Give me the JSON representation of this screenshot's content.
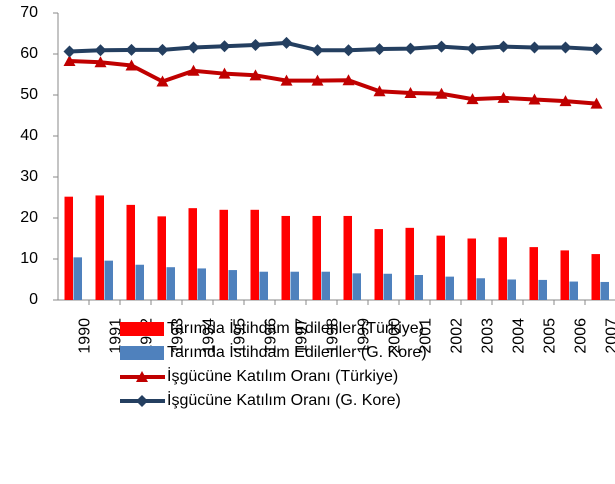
{
  "chart_data": {
    "type": "bar",
    "categories": [
      "1990",
      "1991",
      "1992",
      "1993",
      "1994",
      "1995",
      "1996",
      "1997",
      "1998",
      "1999",
      "2000",
      "2001",
      "2002",
      "2003",
      "2004",
      "2005",
      "2006",
      "2007"
    ],
    "series": [
      {
        "name": "Tarımda İstihdam Edilenler (Türkiye)",
        "type": "bar",
        "color": "#ff0000",
        "values": [
          25.2,
          25.5,
          23.2,
          20.4,
          22.4,
          22,
          22,
          20.5,
          20.5,
          20.5,
          17.3,
          17.6,
          15.7,
          15,
          15.3,
          12.9,
          12.1,
          11.2
        ]
      },
      {
        "name": "Tarımda İstihdam Edilenler (G. Kore)",
        "type": "bar",
        "color": "#4f81bd",
        "values": [
          10.4,
          9.6,
          8.6,
          8.0,
          7.7,
          7.3,
          6.9,
          6.9,
          6.9,
          6.5,
          6.4,
          6.1,
          5.7,
          5.3,
          5.0,
          4.9,
          4.5,
          4.4
        ]
      },
      {
        "name": "İşgücüne Katılım Oranı (Türkiye)",
        "type": "line",
        "marker": "triangle",
        "color": "#c00000",
        "values": [
          58.3,
          58.0,
          57.2,
          53.3,
          55.9,
          55.2,
          54.8,
          53.5,
          53.5,
          53.6,
          50.9,
          50.5,
          50.3,
          49.0,
          49.3,
          48.9,
          48.5,
          47.9
        ]
      },
      {
        "name": "İşgücüne Katılım Oranı (G. Kore)",
        "type": "line",
        "marker": "diamond",
        "color": "#243f60",
        "values": [
          60.6,
          60.9,
          61.0,
          61.0,
          61.6,
          61.9,
          62.2,
          62.7,
          60.9,
          60.9,
          61.2,
          61.3,
          61.8,
          61.3,
          61.8,
          61.6,
          61.6,
          61.2
        ]
      }
    ],
    "ylim": [
      0,
      70
    ],
    "yticks": [
      0,
      10,
      20,
      30,
      40,
      50,
      60,
      70
    ],
    "grid": false
  }
}
